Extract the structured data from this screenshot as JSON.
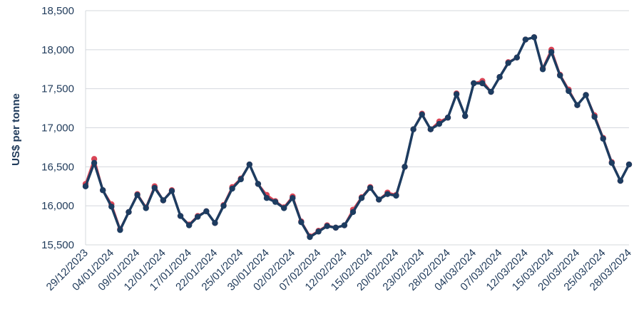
{
  "chart_data": {
    "type": "line",
    "title": "",
    "xlabel": "",
    "ylabel": "US$ per tonne",
    "ylim": [
      15500,
      18500
    ],
    "yticks": [
      15500,
      16000,
      16500,
      17000,
      17500,
      18000,
      18500
    ],
    "ytick_labels": [
      "15,500",
      "16,000",
      "16,500",
      "17,000",
      "17,500",
      "18,000",
      "18,500"
    ],
    "grid": "horizontal",
    "legend": "none",
    "categories": [
      "29/12/2023",
      "02/01/2024",
      "03/01/2024",
      "04/01/2024",
      "05/01/2024",
      "08/01/2024",
      "09/01/2024",
      "10/01/2024",
      "11/01/2024",
      "12/01/2024",
      "15/01/2024",
      "16/01/2024",
      "17/01/2024",
      "18/01/2024",
      "19/01/2024",
      "22/01/2024",
      "23/01/2024",
      "24/01/2024",
      "25/01/2024",
      "26/01/2024",
      "29/01/2024",
      "30/01/2024",
      "31/01/2024",
      "01/02/2024",
      "02/02/2024",
      "05/02/2024",
      "06/02/2024",
      "07/02/2024",
      "08/02/2024",
      "09/02/2024",
      "12/02/2024",
      "13/02/2024",
      "14/02/2024",
      "15/02/2024",
      "16/02/2024",
      "19/02/2024",
      "20/02/2024",
      "21/02/2024",
      "22/02/2024",
      "23/02/2024",
      "26/02/2024",
      "27/02/2024",
      "28/02/2024",
      "29/02/2024",
      "01/03/2024",
      "04/03/2024",
      "05/03/2024",
      "06/03/2024",
      "07/03/2024",
      "08/03/2024",
      "11/03/2024",
      "12/03/2024",
      "13/03/2024",
      "14/03/2024",
      "15/03/2024",
      "18/03/2024",
      "19/03/2024",
      "20/03/2024",
      "21/03/2024",
      "22/03/2024",
      "25/03/2024",
      "26/03/2024",
      "27/03/2024",
      "28/03/2024"
    ],
    "xtick_labels": [
      "29/12/2023",
      "04/01/2024",
      "09/01/2024",
      "12/01/2024",
      "17/01/2024",
      "22/01/2024",
      "25/01/2024",
      "30/01/2024",
      "02/02/2024",
      "07/02/2024",
      "12/02/2024",
      "15/02/2024",
      "20/02/2024",
      "23/02/2024",
      "28/02/2024",
      "04/03/2024",
      "07/03/2024",
      "12/03/2024",
      "15/03/2024",
      "20/03/2024",
      "25/03/2024",
      "28/03/2024"
    ],
    "series": [
      {
        "color": "#d94556",
        "values": [
          16280,
          16600,
          16200,
          16020,
          15700,
          15920,
          16150,
          15980,
          16250,
          16070,
          16200,
          15870,
          15760,
          15870,
          15930,
          15780,
          16010,
          16240,
          16350,
          16530,
          16280,
          16140,
          16060,
          15980,
          16120,
          15800,
          15610,
          15680,
          15750,
          15720,
          15750,
          15950,
          16110,
          16240,
          16080,
          16170,
          16140,
          16500,
          16980,
          17180,
          16980,
          17080,
          17130,
          17440,
          17150,
          17570,
          17600,
          17460,
          17650,
          17840,
          17900,
          18130,
          18160,
          17760,
          18000,
          17680,
          17490,
          17290,
          17420,
          17160,
          16870,
          16560,
          16320,
          16530
        ]
      },
      {
        "color": "#1d3c60",
        "values": [
          16250,
          16550,
          16200,
          15990,
          15690,
          15920,
          16140,
          15970,
          16230,
          16070,
          16190,
          15870,
          15750,
          15860,
          15930,
          15780,
          16000,
          16220,
          16340,
          16530,
          16280,
          16100,
          16050,
          15970,
          16100,
          15790,
          15600,
          15670,
          15740,
          15720,
          15750,
          15920,
          16100,
          16230,
          16080,
          16150,
          16130,
          16500,
          16980,
          17170,
          16980,
          17050,
          17130,
          17430,
          17150,
          17570,
          17570,
          17460,
          17650,
          17830,
          17900,
          18130,
          18160,
          17750,
          17970,
          17670,
          17470,
          17290,
          17420,
          17140,
          16860,
          16550,
          16320,
          16530
        ]
      }
    ]
  }
}
